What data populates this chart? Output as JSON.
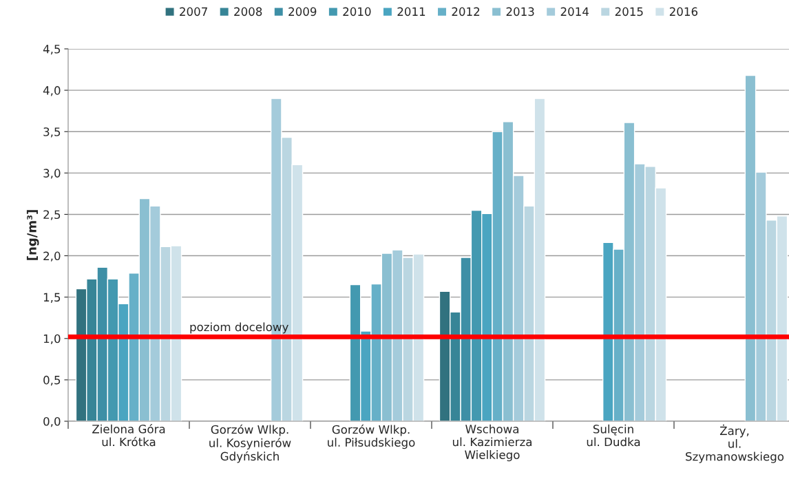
{
  "chart_data": {
    "type": "bar",
    "ylabel": "[ng/m³]",
    "categories": [
      "Zielona Góra\nul. Krótka",
      "Gorzów Wlkp.\nul. Kosynierów\nGdyńskich",
      "Gorzów Wlkp.\nul. Piłsudskiego",
      "Wschowa\nul. Kazimierza\nWielkiego",
      "Sulęcin\nul. Dudka",
      "Żary,\nul.\nSzymanowskiego"
    ],
    "series": [
      {
        "name": "2007",
        "color": "#31727f",
        "values": [
          1.6,
          null,
          null,
          1.57,
          null,
          null
        ]
      },
      {
        "name": "2008",
        "color": "#378597",
        "values": [
          1.72,
          null,
          null,
          1.32,
          null,
          null
        ]
      },
      {
        "name": "2009",
        "color": "#3e8fa6",
        "values": [
          1.86,
          null,
          null,
          1.98,
          null,
          null
        ]
      },
      {
        "name": "2010",
        "color": "#4399b0",
        "values": [
          1.72,
          null,
          1.65,
          2.55,
          null,
          null
        ]
      },
      {
        "name": "2011",
        "color": "#4aa5c1",
        "values": [
          1.42,
          null,
          1.09,
          2.51,
          2.16,
          null
        ]
      },
      {
        "name": "2012",
        "color": "#66b0c8",
        "values": [
          1.79,
          null,
          1.66,
          3.5,
          2.08,
          null
        ]
      },
      {
        "name": "2013",
        "color": "#8abfd1",
        "values": [
          2.69,
          null,
          2.03,
          3.62,
          3.61,
          4.18
        ]
      },
      {
        "name": "2014",
        "color": "#a4cbdb",
        "values": [
          2.6,
          3.9,
          2.07,
          2.97,
          3.11,
          3.01
        ]
      },
      {
        "name": "2015",
        "color": "#bad6e1",
        "values": [
          2.11,
          3.43,
          1.98,
          2.6,
          3.08,
          2.43
        ]
      },
      {
        "name": "2016",
        "color": "#cfe2ea",
        "values": [
          2.12,
          3.1,
          2.02,
          3.9,
          2.82,
          2.48
        ]
      }
    ],
    "ylim": [
      0,
      4.5
    ],
    "yticks": [
      {
        "value": 0,
        "label": "0,0"
      },
      {
        "value": 0.5,
        "label": "0,5"
      },
      {
        "value": 1,
        "label": "1,0"
      },
      {
        "value": 1.5,
        "label": "1,5"
      },
      {
        "value": 2,
        "label": "2,0"
      },
      {
        "value": 2.5,
        "label": "2,5"
      },
      {
        "value": 3,
        "label": "3,0"
      },
      {
        "value": 3.5,
        "label": "3,5"
      },
      {
        "value": 4,
        "label": "4,0"
      },
      {
        "value": 4.5,
        "label": "4,5"
      }
    ],
    "ref_lines": [
      {
        "axis": "y",
        "value": 1.02,
        "label": "poziom docelowy",
        "color": "#ff0000"
      }
    ],
    "grid": "y",
    "legend": "top"
  }
}
